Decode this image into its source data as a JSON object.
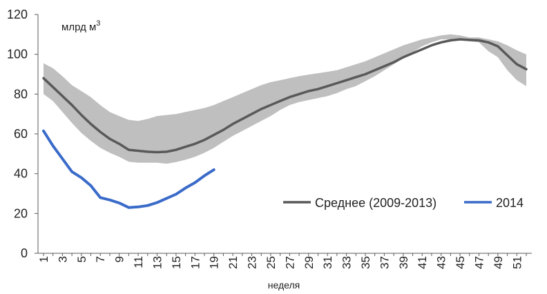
{
  "chart_data": {
    "type": "area",
    "xlabel": "неделя",
    "unit_label": "млрд м",
    "unit_superscript": "3",
    "ylim": [
      0,
      120
    ],
    "yticks": [
      0,
      20,
      40,
      60,
      80,
      100,
      120
    ],
    "xlim": [
      1,
      52
    ],
    "xtick_labels": [
      "1",
      "3",
      "5",
      "7",
      "9",
      "11",
      "13",
      "15",
      "17",
      "19",
      "21",
      "23",
      "25",
      "27",
      "29",
      "31",
      "33",
      "35",
      "37",
      "39",
      "41",
      "43",
      "45",
      "47",
      "49",
      "51"
    ],
    "grid": false,
    "legend_position": "bottom-right",
    "colors": {
      "average": "#595959",
      "range_band": "#bfbfbf",
      "y2014": "#3a6bc9",
      "axis": "#595959"
    },
    "range_band": {
      "x": [
        1,
        2,
        3,
        4,
        5,
        6,
        7,
        8,
        9,
        10,
        11,
        12,
        13,
        14,
        15,
        16,
        17,
        18,
        19,
        20,
        21,
        22,
        23,
        24,
        25,
        26,
        27,
        28,
        29,
        30,
        31,
        32,
        33,
        34,
        35,
        36,
        37,
        38,
        39,
        40,
        41,
        42,
        43,
        44,
        45,
        46,
        47,
        48,
        49,
        50,
        51,
        52
      ],
      "upper": [
        95.5,
        93,
        89,
        84.5,
        81.5,
        78.5,
        74.5,
        71,
        69,
        67,
        66.5,
        67.5,
        69,
        69.5,
        70,
        71,
        72,
        73,
        74.5,
        76.5,
        78.5,
        80.5,
        82.5,
        84.5,
        86,
        87,
        88,
        89,
        89.8,
        90.5,
        91.2,
        92,
        93.5,
        95,
        96.5,
        98.5,
        100.5,
        102.5,
        104.5,
        106,
        107.5,
        108.5,
        109.5,
        110,
        109.5,
        108.5,
        108.5,
        107.5,
        106.5,
        104.5,
        102,
        100
      ],
      "lower": [
        80,
        76.5,
        71,
        65.5,
        60.5,
        56.5,
        53,
        50.5,
        48.5,
        46,
        45.5,
        45.5,
        45.5,
        45,
        45.8,
        47,
        48.5,
        50.5,
        53,
        56,
        59,
        61.5,
        64,
        66.5,
        69,
        72,
        74.5,
        76,
        77,
        78,
        79,
        80.5,
        82.5,
        84,
        86.5,
        89,
        92,
        95,
        98,
        101,
        104,
        106,
        107.5,
        107.5,
        107,
        106.5,
        106,
        101.5,
        98.5,
        92,
        87,
        84
      ]
    },
    "series": [
      {
        "name": "Среднее (2009-2013)",
        "x": [
          1,
          2,
          3,
          4,
          5,
          6,
          7,
          8,
          9,
          10,
          11,
          12,
          13,
          14,
          15,
          16,
          17,
          18,
          19,
          20,
          21,
          22,
          23,
          24,
          25,
          26,
          27,
          28,
          29,
          30,
          31,
          32,
          33,
          34,
          35,
          36,
          37,
          38,
          39,
          40,
          41,
          42,
          43,
          44,
          45,
          46,
          47,
          48,
          49,
          50,
          51,
          52
        ],
        "values": [
          88,
          83.5,
          79,
          74.5,
          69.5,
          65,
          61,
          57.5,
          55,
          52,
          51.5,
          51,
          50.8,
          51,
          52,
          53.5,
          55,
          57,
          59.5,
          62,
          65,
          67.5,
          70,
          72.5,
          74.5,
          76.5,
          78.5,
          80,
          81.5,
          82.5,
          84,
          85.5,
          87,
          88.5,
          90,
          92,
          94,
          96,
          98.5,
          100.5,
          102.5,
          104.5,
          106,
          107,
          107.5,
          107.2,
          107,
          106,
          104,
          99.5,
          95,
          92.5
        ]
      },
      {
        "name": "2014",
        "x": [
          1,
          2,
          3,
          4,
          5,
          6,
          7,
          8,
          9,
          10,
          11,
          12,
          13,
          14,
          15,
          16,
          17,
          18,
          19
        ],
        "values": [
          61.5,
          54,
          47.5,
          41,
          38,
          34,
          28,
          26.8,
          25.3,
          23,
          23.3,
          24,
          25.5,
          27.6,
          29.7,
          32.8,
          35.5,
          39,
          42
        ]
      }
    ]
  }
}
